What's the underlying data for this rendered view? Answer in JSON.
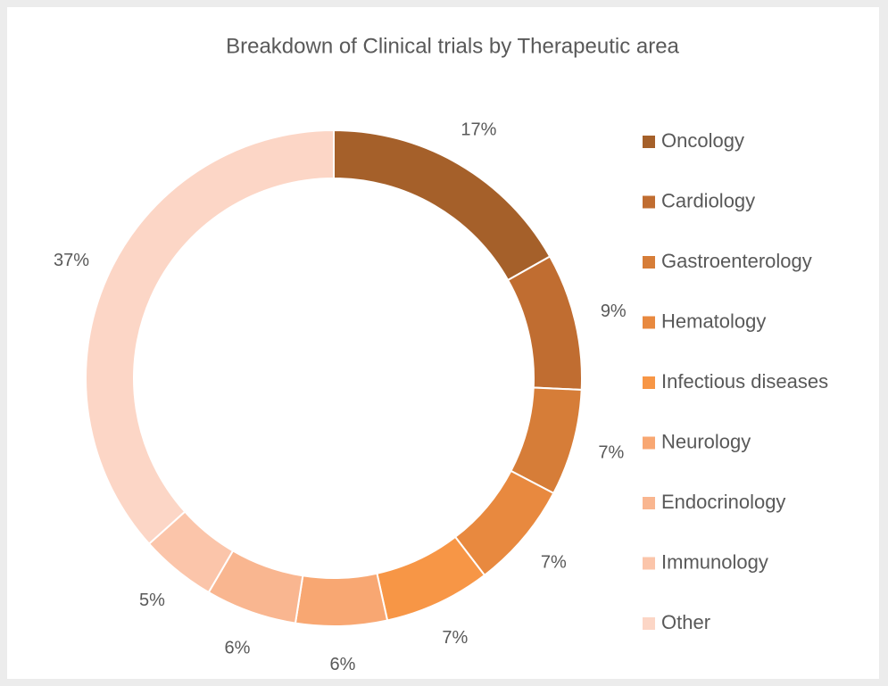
{
  "chart_data": {
    "type": "donut",
    "title": "Breakdown of Clinical trials by Therapeutic area",
    "categories": [
      "Oncology",
      "Cardiology",
      "Gastroenterology",
      "Hematology",
      "Infectious diseases",
      "Neurology",
      "Endocrinology",
      "Immunology",
      "Other"
    ],
    "values": [
      17,
      9,
      7,
      7,
      7,
      6,
      6,
      5,
      37
    ],
    "value_labels": [
      "17%",
      "9%",
      "7%",
      "7%",
      "7%",
      "6%",
      "6%",
      "5%",
      "37%"
    ],
    "colors": [
      "#a5602a",
      "#c06d31",
      "#d67d38",
      "#e8893f",
      "#f79646",
      "#f8a772",
      "#f9b690",
      "#fbc5aa",
      "#fcd6c6"
    ],
    "legend": "right"
  }
}
